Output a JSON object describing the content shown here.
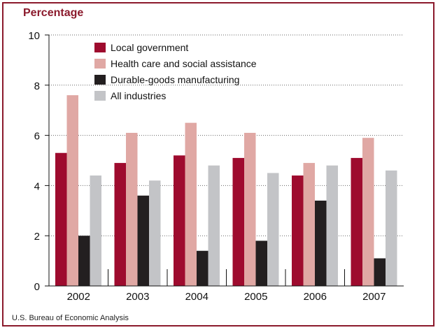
{
  "source": "U.S. Bureau of Economic Analysis",
  "chart_data": {
    "type": "bar",
    "ylabel": "Percentage",
    "xlabel": "",
    "ylim": [
      0,
      10
    ],
    "yticks": [
      0,
      2,
      4,
      6,
      8,
      10
    ],
    "grid": "horizontal dotted",
    "legend_position": "top-left",
    "categories": [
      "2002",
      "2003",
      "2004",
      "2005",
      "2006",
      "2007"
    ],
    "series": [
      {
        "name": "Local government",
        "color": "#9e0b2e",
        "values": [
          5.3,
          4.9,
          5.2,
          5.1,
          4.4,
          5.1
        ]
      },
      {
        "name": "Health care and social assistance",
        "color": "#e0a8a4",
        "values": [
          7.6,
          6.1,
          6.5,
          6.1,
          4.9,
          5.9
        ]
      },
      {
        "name": "Durable-goods manufacturing",
        "color": "#231f20",
        "values": [
          2.0,
          3.6,
          1.4,
          1.8,
          3.4,
          1.1
        ]
      },
      {
        "name": "All industries",
        "color": "#c3c4c7",
        "values": [
          4.4,
          4.2,
          4.8,
          4.5,
          4.8,
          4.6
        ]
      }
    ]
  }
}
